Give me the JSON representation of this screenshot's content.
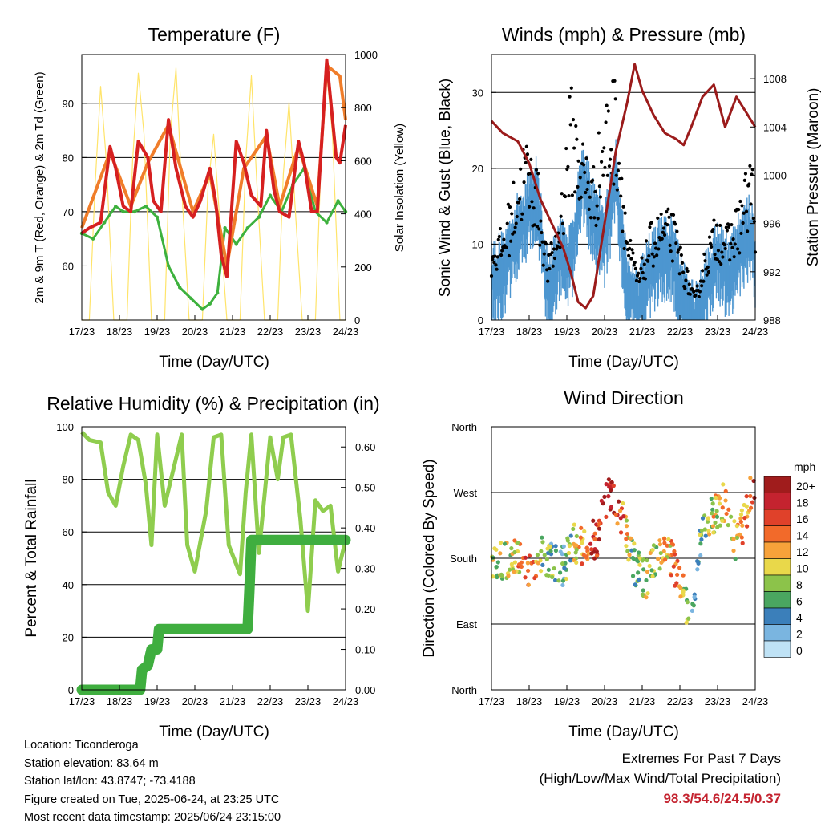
{
  "colors": {
    "temp2m": "#d62020",
    "temp9m": "#f07d2a",
    "dewpoint": "#3db13d",
    "solar": "#ffe46a",
    "wind": "#4d96d0",
    "gust": "#000000",
    "pressure": "#9b1b1b",
    "rh": "#8fcd4e",
    "precip": "#3fae3f",
    "extremes": "#c4232f"
  },
  "x_ticks": [
    "17/23",
    "18/23",
    "19/23",
    "20/23",
    "21/23",
    "22/23",
    "23/23",
    "24/23"
  ],
  "x_label": "Time (Day/UTC)",
  "panels": {
    "temperature": {
      "title": "Temperature (F)",
      "ylabel_left": "2m & 9m T (Red, Orange) & 2m Td (Green)",
      "ylabel_right": "Solar Insolation (Yellow)",
      "left_ticks": [
        "60",
        "70",
        "80",
        "90"
      ],
      "right_ticks": [
        "0",
        "200",
        "400",
        "600",
        "800",
        "1000"
      ]
    },
    "winds": {
      "title": "Winds (mph) & Pressure (mb)",
      "ylabel_left": "Sonic Wind & Gust (Blue, Black)",
      "ylabel_right": "Station Pressure (Maroon)",
      "left_ticks": [
        "0",
        "10",
        "20",
        "30"
      ],
      "right_ticks": [
        "988",
        "992",
        "996",
        "1000",
        "1004",
        "1008"
      ]
    },
    "humidity": {
      "title": "Relative Humidity (%) & Precipitation (in)",
      "ylabel_left": "Percent & Total Rainfall",
      "left_ticks": [
        "0",
        "20",
        "40",
        "60",
        "80",
        "100"
      ],
      "right_ticks": [
        "0.00",
        "0.10",
        "0.20",
        "0.30",
        "0.40",
        "0.50",
        "0.60"
      ]
    },
    "direction": {
      "title": "Wind Direction",
      "ylabel_left": "Direction (Colored By Speed)",
      "dir_ticks": [
        "North",
        "East",
        "South",
        "West",
        "North"
      ],
      "legend_title": "mph",
      "legend_labels": [
        "20+",
        "18",
        "16",
        "14",
        "12",
        "10",
        "8",
        "6",
        "4",
        "2",
        "0"
      ],
      "legend_colors": [
        "#a01c1c",
        "#c4232f",
        "#e0412a",
        "#f26a2a",
        "#f7a23a",
        "#e9d84a",
        "#8cc34a",
        "#4aa660",
        "#3b7fba",
        "#7ab5e0",
        "#bfe2f5"
      ]
    }
  },
  "chart_data": [
    {
      "type": "line",
      "title": "Temperature (F)",
      "xlabel": "Time (Day/UTC)",
      "ylabel": "2m & 9m T (Red, Orange) & 2m Td (Green)",
      "ylabel_right": "Solar Insolation (Yellow)",
      "x_unit": "days since 17/23",
      "xlim": [
        0,
        7
      ],
      "ylim": [
        50,
        99
      ],
      "ylim_right": [
        0,
        1000
      ],
      "series": [
        {
          "name": "2m T",
          "x": [
            0,
            0.2,
            0.5,
            0.75,
            0.9,
            1.1,
            1.3,
            1.5,
            1.75,
            1.9,
            2.1,
            2.3,
            2.5,
            2.75,
            2.95,
            3.15,
            3.4,
            3.55,
            3.7,
            3.85,
            4.1,
            4.3,
            4.5,
            4.75,
            4.9,
            5.1,
            5.25,
            5.5,
            5.75,
            5.9,
            6.1,
            6.25,
            6.5,
            6.75,
            6.85,
            7.0
          ],
          "y": [
            66,
            67,
            68,
            82,
            78,
            71,
            70,
            83,
            80,
            72,
            70,
            87,
            78,
            71,
            69,
            72,
            78,
            72,
            62,
            58,
            83,
            79,
            73,
            71,
            85,
            74,
            70,
            69,
            83,
            79,
            70,
            70,
            98,
            80,
            79,
            86
          ]
        },
        {
          "name": "9m T",
          "x": [
            0,
            0.75,
            1.3,
            1.75,
            2.3,
            2.95,
            3.4,
            3.85,
            4.3,
            4.9,
            5.25,
            5.75,
            6.25,
            6.5,
            6.85,
            7.0
          ],
          "y": [
            67,
            81,
            71,
            79,
            86,
            70,
            77,
            60,
            78,
            84,
            71,
            82,
            71,
            97,
            95,
            87
          ]
        },
        {
          "name": "2m Td",
          "x": [
            0,
            0.3,
            0.6,
            0.9,
            1.1,
            1.4,
            1.7,
            2.0,
            2.3,
            2.6,
            2.9,
            3.2,
            3.4,
            3.6,
            3.8,
            4.1,
            4.4,
            4.7,
            5.0,
            5.3,
            5.6,
            5.9,
            6.2,
            6.5,
            6.8,
            7.0
          ],
          "y": [
            66,
            65,
            68,
            71,
            70,
            70,
            71,
            69,
            60,
            56,
            54,
            52,
            53,
            55,
            67,
            64,
            67,
            69,
            73,
            70,
            75,
            78,
            70,
            68,
            72,
            70
          ]
        },
        {
          "name": "Solar Insolation",
          "axis": "right",
          "x": [
            0,
            0.2,
            0.35,
            0.5,
            0.65,
            0.85,
            1.0,
            1.2,
            1.35,
            1.5,
            1.65,
            1.85,
            2.0,
            2.2,
            2.35,
            2.5,
            2.65,
            2.85,
            3.0,
            3.2,
            3.35,
            3.5,
            3.65,
            3.85,
            4.0,
            4.2,
            4.35,
            4.5,
            4.65,
            4.85,
            5.0,
            5.2,
            5.35,
            5.5,
            5.65,
            5.85,
            6.0,
            6.2,
            6.35,
            6.5,
            6.65,
            6.85,
            7.0
          ],
          "y": [
            0,
            0,
            500,
            880,
            600,
            0,
            0,
            0,
            600,
            930,
            700,
            0,
            0,
            0,
            700,
            950,
            500,
            0,
            0,
            0,
            500,
            700,
            400,
            0,
            0,
            0,
            600,
            920,
            500,
            0,
            0,
            0,
            550,
            820,
            450,
            0,
            0,
            0,
            600,
            930,
            700,
            0,
            0
          ]
        }
      ]
    },
    {
      "type": "line",
      "title": "Winds (mph) & Pressure (mb)",
      "xlabel": "Time (Day/UTC)",
      "ylabel": "Sonic Wind & Gust (Blue, Black)",
      "ylabel_right": "Station Pressure (Maroon)",
      "x_unit": "days since 17/23",
      "xlim": [
        0,
        7
      ],
      "ylim": [
        0,
        35
      ],
      "ylim_right": [
        988,
        1010
      ],
      "series": [
        {
          "name": "Sonic Wind",
          "x": [
            0,
            0.3,
            0.6,
            0.9,
            1.2,
            1.5,
            1.8,
            2.1,
            2.4,
            2.7,
            3.0,
            3.3,
            3.6,
            3.9,
            4.2,
            4.5,
            4.8,
            5.1,
            5.4,
            5.7,
            6.0,
            6.3,
            6.6,
            6.9,
            7.0
          ],
          "y": [
            7,
            8,
            12,
            15,
            18,
            5,
            10,
            9,
            20,
            15,
            12,
            20,
            6,
            3,
            8,
            10,
            10,
            4,
            1,
            6,
            10,
            7,
            11,
            13,
            9
          ]
        },
        {
          "name": "Gust",
          "x": [
            0,
            0.3,
            0.6,
            0.9,
            1.2,
            1.5,
            1.8,
            2.1,
            2.4,
            2.7,
            3.0,
            3.3,
            3.6,
            3.9,
            4.2,
            4.5,
            4.8,
            5.1,
            5.4,
            5.7,
            6.0,
            6.3,
            6.6,
            6.9,
            7.0
          ],
          "y": [
            10,
            12,
            18,
            24,
            20,
            8,
            14,
            30,
            24,
            20,
            28,
            32,
            12,
            6,
            12,
            14,
            14,
            8,
            3,
            10,
            14,
            12,
            16,
            22,
            16
          ]
        },
        {
          "name": "Station Pressure",
          "axis": "right",
          "x": [
            0,
            0.3,
            0.7,
            1.0,
            1.3,
            1.6,
            1.9,
            2.1,
            2.3,
            2.5,
            2.7,
            3.0,
            3.3,
            3.6,
            3.8,
            4.0,
            4.3,
            4.6,
            4.9,
            5.1,
            5.3,
            5.6,
            5.9,
            6.2,
            6.5,
            6.8,
            7.0
          ],
          "y": [
            1004.5,
            1003.5,
            1002.8,
            1001,
            998,
            996,
            994,
            992,
            989.5,
            989,
            990,
            996,
            1002,
            1006,
            1009.2,
            1007,
            1005,
            1003.5,
            1003,
            1002.5,
            1004,
            1006.5,
            1007.5,
            1004,
            1006.5,
            1005,
            1004
          ]
        }
      ]
    },
    {
      "type": "line",
      "title": "Relative Humidity (%) & Precipitation (in)",
      "xlabel": "Time (Day/UTC)",
      "ylabel": "Percent & Total Rainfall",
      "x_unit": "days since 17/23",
      "xlim": [
        0,
        7
      ],
      "ylim": [
        0,
        100
      ],
      "ylim_right": [
        0,
        0.65
      ],
      "series": [
        {
          "name": "Relative Humidity",
          "x": [
            0,
            0.2,
            0.5,
            0.7,
            0.9,
            1.1,
            1.3,
            1.5,
            1.7,
            1.85,
            2.0,
            2.2,
            2.45,
            2.65,
            2.8,
            3.0,
            3.3,
            3.5,
            3.7,
            3.9,
            4.2,
            4.35,
            4.5,
            4.7,
            5.0,
            5.2,
            5.35,
            5.55,
            5.8,
            6.0,
            6.2,
            6.4,
            6.6,
            6.8,
            7.0
          ],
          "y": [
            98,
            95,
            94,
            75,
            70,
            85,
            97,
            95,
            78,
            55,
            97,
            70,
            85,
            97,
            55,
            45,
            68,
            96,
            97,
            55,
            44,
            75,
            97,
            52,
            96,
            80,
            96,
            97,
            65,
            30,
            72,
            68,
            70,
            45,
            57
          ]
        },
        {
          "name": "Total Precipitation",
          "axis": "right",
          "x": [
            0,
            1.55,
            1.6,
            1.75,
            1.85,
            2.0,
            2.05,
            4.4,
            4.45,
            4.5,
            7.0
          ],
          "y": [
            0,
            0,
            0.05,
            0.06,
            0.1,
            0.1,
            0.15,
            0.15,
            0.25,
            0.37,
            0.37
          ]
        }
      ]
    },
    {
      "type": "scatter",
      "title": "Wind Direction",
      "xlabel": "Time (Day/UTC)",
      "ylabel": "Direction (Colored By Speed)",
      "x_unit": "days since 17/23",
      "xlim": [
        0,
        7
      ],
      "ylim": [
        0,
        360
      ],
      "series": [
        {
          "name": "Direction",
          "x": [
            0.2,
            0.5,
            0.8,
            1.0,
            1.3,
            1.6,
            1.9,
            2.2,
            2.5,
            2.8,
            3.0,
            3.2,
            3.5,
            3.8,
            4.1,
            4.4,
            4.7,
            5.0,
            5.3,
            5.6,
            5.9,
            6.2,
            6.5,
            6.8,
            7.0
          ],
          "y": [
            180,
            175,
            180,
            160,
            185,
            175,
            170,
            200,
            195,
            210,
            255,
            270,
            230,
            170,
            150,
            180,
            185,
            150,
            90,
            220,
            240,
            260,
            200,
            250,
            290
          ],
          "speed": [
            8,
            10,
            12,
            16,
            8,
            6,
            4,
            10,
            14,
            18,
            20,
            18,
            14,
            6,
            8,
            10,
            12,
            14,
            4,
            6,
            10,
            12,
            10,
            14,
            16
          ]
        }
      ]
    }
  ],
  "info": {
    "location": "Location: Ticonderoga",
    "elevation": "Station elevation: 83.64 m",
    "latlon": "Station lat/lon: 43.8747; -73.4188",
    "created": "Figure created on Tue, 2025-06-24, at 23:25 UTC",
    "recent": "Most recent data timestamp: 2025/06/24 23:15:00"
  },
  "extremes": {
    "title": "Extremes For Past 7 Days",
    "subtitle": "(High/Low/Max Wind/Total Precipitation)",
    "values": "98.3/54.6/24.5/0.37"
  }
}
